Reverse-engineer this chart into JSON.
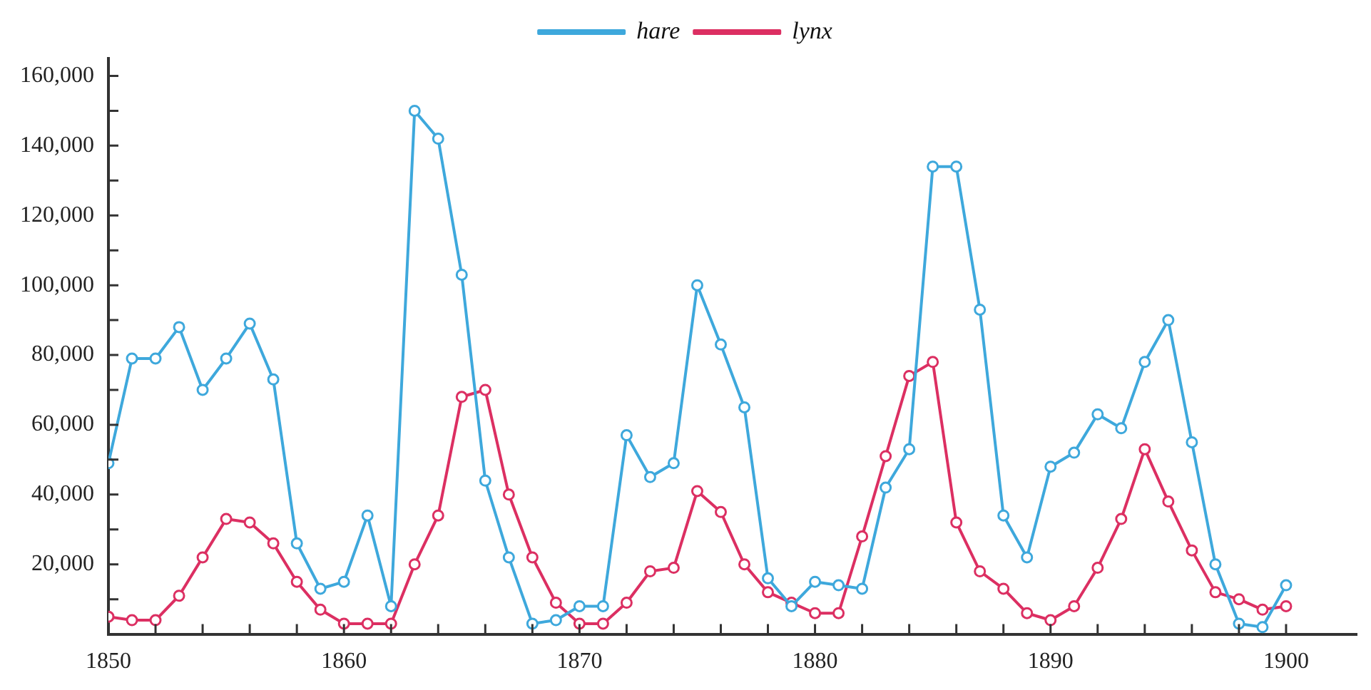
{
  "chart_data": {
    "type": "line",
    "x": [
      1850,
      1851,
      1852,
      1853,
      1854,
      1855,
      1856,
      1857,
      1858,
      1859,
      1860,
      1861,
      1862,
      1863,
      1864,
      1865,
      1866,
      1867,
      1868,
      1869,
      1870,
      1871,
      1872,
      1873,
      1874,
      1875,
      1876,
      1877,
      1878,
      1879,
      1880,
      1881,
      1882,
      1883,
      1884,
      1885,
      1886,
      1887,
      1888,
      1889,
      1890,
      1891,
      1892,
      1893,
      1894,
      1895,
      1896,
      1897,
      1898,
      1899,
      1900
    ],
    "series": [
      {
        "name": "hare",
        "color": "#3ea8dc",
        "values": [
          49000,
          79000,
          79000,
          88000,
          70000,
          79000,
          89000,
          73000,
          26000,
          13000,
          15000,
          34000,
          8000,
          150000,
          142000,
          103000,
          44000,
          22000,
          3000,
          4000,
          8000,
          8000,
          57000,
          45000,
          49000,
          100000,
          83000,
          65000,
          16000,
          8000,
          15000,
          14000,
          13000,
          42000,
          53000,
          134000,
          134000,
          93000,
          34000,
          22000,
          48000,
          52000,
          63000,
          59000,
          78000,
          90000,
          55000,
          20000,
          3000,
          2000,
          14000
        ]
      },
      {
        "name": "lynx",
        "color": "#dc2f62",
        "values": [
          5000,
          4000,
          4000,
          11000,
          22000,
          33000,
          32000,
          26000,
          15000,
          7000,
          3000,
          3000,
          3000,
          20000,
          34000,
          68000,
          70000,
          40000,
          22000,
          9000,
          3000,
          3000,
          9000,
          18000,
          19000,
          41000,
          35000,
          20000,
          12000,
          9000,
          6000,
          6000,
          28000,
          51000,
          74000,
          78000,
          32000,
          18000,
          13000,
          6000,
          4000,
          8000,
          19000,
          33000,
          53000,
          38000,
          24000,
          12000,
          10000,
          7000,
          8000
        ]
      }
    ],
    "xlim": [
      1850,
      1903
    ],
    "ylim": [
      0,
      165000
    ],
    "xticks": [
      1850,
      {
        "value": 1852,
        "label": null
      },
      {
        "value": 1854,
        "label": null
      },
      {
        "value": 1856,
        "label": null
      },
      {
        "value": 1858,
        "label": null
      },
      1860,
      {
        "value": 1862,
        "label": null
      },
      {
        "value": 1864,
        "label": null
      },
      {
        "value": 1866,
        "label": null
      },
      {
        "value": 1868,
        "label": null
      },
      1870,
      {
        "value": 1872,
        "label": null
      },
      {
        "value": 1874,
        "label": null
      },
      {
        "value": 1876,
        "label": null
      },
      {
        "value": 1878,
        "label": null
      },
      1880,
      {
        "value": 1882,
        "label": null
      },
      {
        "value": 1884,
        "label": null
      },
      {
        "value": 1886,
        "label": null
      },
      {
        "value": 1888,
        "label": null
      },
      1890,
      {
        "value": 1892,
        "label": null
      },
      {
        "value": 1894,
        "label": null
      },
      {
        "value": 1896,
        "label": null
      },
      {
        "value": 1898,
        "label": null
      },
      1900
    ],
    "yticks": [
      {
        "value": 10000,
        "label": null
      },
      {
        "value": 20000,
        "label": "20,000"
      },
      {
        "value": 30000,
        "label": null
      },
      {
        "value": 40000,
        "label": "40,000"
      },
      {
        "value": 50000,
        "label": null
      },
      {
        "value": 60000,
        "label": "60,000"
      },
      {
        "value": 70000,
        "label": null
      },
      {
        "value": 80000,
        "label": "80,000"
      },
      {
        "value": 90000,
        "label": null
      },
      {
        "value": 100000,
        "label": "100,000"
      },
      {
        "value": 110000,
        "label": null
      },
      {
        "value": 120000,
        "label": "120,000"
      },
      {
        "value": 130000,
        "label": null
      },
      {
        "value": 140000,
        "label": "140,000"
      },
      {
        "value": 150000,
        "label": null
      },
      {
        "value": 160000,
        "label": "160,000"
      }
    ],
    "grid": false,
    "legend": "top",
    "marker": "circle",
    "line_style": "solid"
  }
}
